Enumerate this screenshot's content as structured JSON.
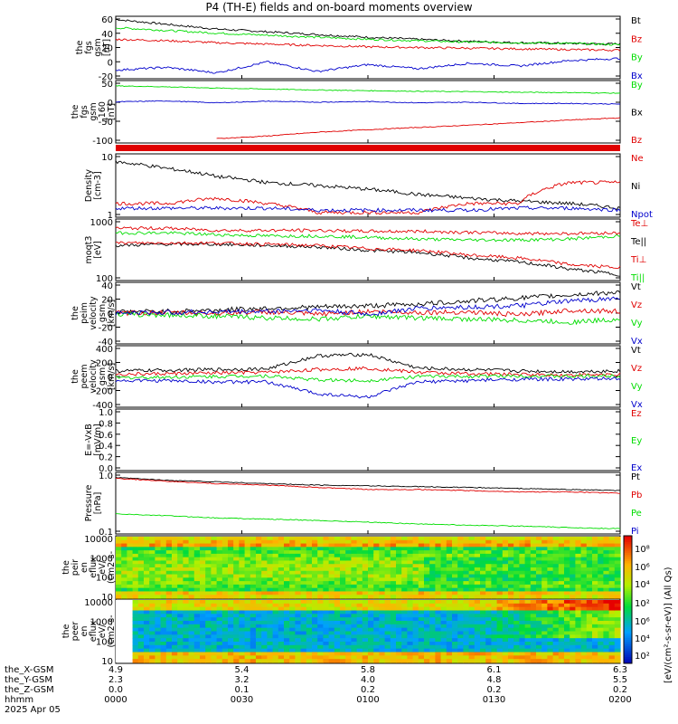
{
  "title": "P4 (TH-E) fields and on-board moments overview",
  "colors": {
    "black": "#000000",
    "red": "#e00000",
    "green": "#00dd00",
    "blue": "#0000cc",
    "axis": "#000000"
  },
  "panels": [
    {
      "id": "fgs_gsm",
      "ylabel": [
        "the",
        "fgs",
        "gsm",
        "[nT]"
      ],
      "ticks": [
        "60",
        "40",
        "20",
        "0",
        "-20"
      ],
      "legend": [
        {
          "t": "Bt",
          "c": "black"
        },
        {
          "t": "Bz",
          "c": "red"
        },
        {
          "t": "By",
          "c": "green"
        },
        {
          "t": "Bx",
          "c": "blue"
        }
      ]
    },
    {
      "id": "fgs_gsm_160",
      "ylabel": [
        "the",
        "fgs",
        "gsm",
        "_160",
        "[nT]"
      ],
      "ticks": [
        "50",
        "0",
        "-50",
        "-100"
      ],
      "legend": [
        {
          "t": "By",
          "c": "green"
        },
        {
          "t": "Bx",
          "c": "black"
        },
        {
          "t": "Bz",
          "c": "red"
        }
      ]
    },
    {
      "id": "density",
      "ylabel": [
        "Density",
        "[cm-3]"
      ],
      "ticks": [
        "10",
        "1"
      ],
      "legend": [
        {
          "t": "Ne",
          "c": "red"
        },
        {
          "t": "Ni",
          "c": "black"
        },
        {
          "t": "Npot",
          "c": "blue"
        }
      ]
    },
    {
      "id": "moqt3",
      "ylabel": [
        "moqt3",
        "[eV]"
      ],
      "ticks": [
        "1000",
        "100"
      ],
      "legend": [
        {
          "t": "Te⊥",
          "c": "red"
        },
        {
          "t": "Te||",
          "c": "black"
        },
        {
          "t": "Ti⊥",
          "c": "red"
        },
        {
          "t": "Ti||",
          "c": "green"
        }
      ]
    },
    {
      "id": "peim_vel",
      "ylabel": [
        "the",
        "peim",
        "velocity",
        "gsm",
        "[km/s]"
      ],
      "ticks": [
        "40",
        "20",
        "0",
        "-20",
        "-40"
      ],
      "legend": [
        {
          "t": "Vt",
          "c": "black"
        },
        {
          "t": "Vz",
          "c": "red"
        },
        {
          "t": "Vy",
          "c": "green"
        },
        {
          "t": "Vx",
          "c": "blue"
        }
      ]
    },
    {
      "id": "peem_vel",
      "ylabel": [
        "the",
        "peem",
        "velocity",
        "gsm",
        "[km/s]"
      ],
      "ticks": [
        "400",
        "200",
        "0",
        "-200",
        "-400"
      ],
      "legend": [
        {
          "t": "Vt",
          "c": "black"
        },
        {
          "t": "Vz",
          "c": "red"
        },
        {
          "t": "Vy",
          "c": "green"
        },
        {
          "t": "Vx",
          "c": "blue"
        }
      ]
    },
    {
      "id": "efield",
      "ylabel": [
        "E=-VxB",
        "[mV/m]"
      ],
      "ticks": [
        "1.0",
        "0.8",
        "0.6",
        "0.4",
        "0.2",
        "0.0"
      ],
      "legend": [
        {
          "t": "Ez",
          "c": "red"
        },
        {
          "t": "Ey",
          "c": "green"
        },
        {
          "t": "Ex",
          "c": "blue"
        }
      ]
    },
    {
      "id": "pressure",
      "ylabel": [
        "Pressure",
        "[nPa]"
      ],
      "ticks": [
        "1.0",
        "0.1"
      ],
      "legend": [
        {
          "t": "Pt",
          "c": "black"
        },
        {
          "t": "Pb",
          "c": "red"
        },
        {
          "t": "Pe",
          "c": "green"
        },
        {
          "t": "Pi",
          "c": "blue"
        }
      ]
    },
    {
      "id": "peir_eflux",
      "ylabel": [
        "the",
        "peir",
        "en",
        "eflux",
        "eV/",
        "(cm2-s-",
        "sr-eV)"
      ],
      "ticks": [
        "10000",
        "1000",
        "100",
        "10"
      ]
    },
    {
      "id": "peer_eflux",
      "ylabel": [
        "the",
        "peer",
        "en",
        "eflux",
        "eV/",
        "(cm2-s-",
        "sr-eV)"
      ],
      "ticks": [
        "10000",
        "1000",
        "100",
        "10"
      ]
    }
  ],
  "colorbar": {
    "ticks_top": [
      "10⁸",
      "10⁶",
      "10⁴",
      "10²"
    ],
    "ticks_bottom": [
      "10⁸",
      "10⁶",
      "10⁴",
      "10²"
    ],
    "label": "[eV/(cm²-s-sr-eV)] (All Qs)"
  },
  "ephemeris": {
    "row_labels": [
      "the_X-GSM",
      "the_Y-GSM",
      "the_Z-GSM",
      "hhmm",
      "2025 Apr 05"
    ],
    "columns": [
      {
        "x": "4.9",
        "y": "2.3",
        "z": "0.0",
        "t": "0000"
      },
      {
        "x": "5.4",
        "y": "3.2",
        "z": "0.1",
        "t": "0030"
      },
      {
        "x": "5.8",
        "y": "4.0",
        "z": "0.2",
        "t": "0100"
      },
      {
        "x": "6.1",
        "y": "4.8",
        "z": "0.2",
        "t": "0130"
      },
      {
        "x": "6.3",
        "y": "5.5",
        "z": "0.2",
        "t": "0200"
      }
    ]
  },
  "chart_data": {
    "type": "line",
    "title": "P4 (TH-E) fields and on-board moments overview",
    "x_range": [
      "0000",
      "0200"
    ],
    "series": [
      {
        "panel": "fgs_gsm",
        "name": "Bt",
        "values": [
          62,
          55,
          48,
          44,
          40,
          36,
          33,
          30,
          28,
          27,
          26
        ]
      },
      {
        "panel": "fgs_gsm",
        "name": "By",
        "values": [
          50,
          46,
          42,
          39,
          36,
          33,
          31,
          29,
          28,
          27,
          25
        ]
      },
      {
        "panel": "fgs_gsm",
        "name": "Bz",
        "values": [
          33,
          31,
          28,
          26,
          24,
          22,
          21,
          20,
          19,
          18,
          17
        ]
      },
      {
        "panel": "fgs_gsm",
        "name": "Bx",
        "values": [
          -12,
          -8,
          -16,
          0,
          -14,
          -4,
          -10,
          -2,
          -6,
          2,
          5
        ]
      },
      {
        "panel": "fgs_gsm_160",
        "name": "By",
        "values": [
          45,
          42,
          38,
          35,
          32,
          30,
          28,
          27,
          25,
          24,
          22
        ]
      },
      {
        "panel": "fgs_gsm_160",
        "name": "Bx",
        "values": [
          -5,
          -2,
          -8,
          -3,
          -6,
          -4,
          -8,
          -6,
          -10,
          -10,
          -12
        ]
      },
      {
        "panel": "fgs_gsm_160",
        "name": "Bz",
        "values": [
          null,
          null,
          -120,
          -112,
          -100,
          -92,
          -85,
          -78,
          -70,
          -62,
          -55
        ]
      },
      {
        "panel": "density",
        "name": "Ni",
        "values": [
          25,
          15,
          8,
          5,
          4,
          3,
          2,
          1.5,
          1.2,
          1,
          0.7
        ]
      },
      {
        "panel": "density",
        "name": "Ne",
        "values": [
          1,
          1,
          1.5,
          1,
          0.5,
          0.5,
          0.5,
          1,
          1,
          5,
          5
        ]
      },
      {
        "panel": "density",
        "name": "Npot",
        "values": [
          0.7,
          0.7,
          0.7,
          0.7,
          0.6,
          0.6,
          0.6,
          0.6,
          0.7,
          0.7,
          0.6
        ]
      },
      {
        "panel": "moqt3",
        "name": "Te||",
        "values": [
          1000,
          1100,
          1100,
          1000,
          900,
          700,
          600,
          400,
          300,
          180,
          120
        ]
      },
      {
        "panel": "moqt3",
        "name": "Te⊥",
        "values": [
          1200,
          1200,
          1200,
          1100,
          1000,
          800,
          700,
          500,
          400,
          250,
          200
        ]
      },
      {
        "panel": "moqt3",
        "name": "Ti||",
        "values": [
          2500,
          2500,
          2200,
          2000,
          2000,
          1800,
          1600,
          1500,
          1500,
          1600,
          2000
        ]
      },
      {
        "panel": "moqt3",
        "name": "Ti⊥",
        "values": [
          3500,
          3500,
          3000,
          3000,
          3000,
          2800,
          2800,
          2600,
          2400,
          2400,
          2500
        ]
      },
      {
        "panel": "peim_vel",
        "name": "Vt",
        "values": [
          2,
          3,
          5,
          8,
          10,
          12,
          15,
          20,
          25,
          30,
          35
        ]
      },
      {
        "panel": "peim_vel",
        "name": "Vz",
        "values": [
          0,
          1,
          0,
          2,
          -2,
          3,
          1,
          2,
          -3,
          5,
          3
        ]
      },
      {
        "panel": "peim_vel",
        "name": "Vy",
        "values": [
          -2,
          -3,
          -5,
          -8,
          -10,
          -5,
          -8,
          -10,
          -12,
          -15,
          -10
        ]
      },
      {
        "panel": "peim_vel",
        "name": "Vx",
        "values": [
          0,
          1,
          2,
          3,
          5,
          -2,
          8,
          10,
          12,
          20,
          25
        ]
      },
      {
        "panel": "peem_vel",
        "name": "Vt",
        "values": [
          80,
          90,
          100,
          110,
          300,
          320,
          120,
          100,
          80,
          70,
          80
        ]
      },
      {
        "panel": "peem_vel",
        "name": "Vz",
        "values": [
          30,
          40,
          50,
          60,
          100,
          120,
          60,
          40,
          30,
          20,
          30
        ]
      },
      {
        "panel": "peem_vel",
        "name": "Vy",
        "values": [
          -20,
          -10,
          0,
          10,
          -50,
          -60,
          0,
          0,
          10,
          0,
          10
        ]
      },
      {
        "panel": "peem_vel",
        "name": "Vx",
        "values": [
          -60,
          -60,
          -80,
          -80,
          -250,
          -300,
          -80,
          -60,
          -40,
          -40,
          -30
        ]
      },
      {
        "panel": "pressure",
        "name": "Pt",
        "values": [
          1.5,
          1.2,
          1.05,
          0.9,
          0.8,
          0.75,
          0.7,
          0.65,
          0.6,
          0.55,
          0.5
        ]
      },
      {
        "panel": "pressure",
        "name": "Pb",
        "values": [
          1.4,
          1.1,
          0.9,
          0.8,
          0.65,
          0.55,
          0.55,
          0.5,
          0.45,
          0.45,
          0.4
        ]
      },
      {
        "panel": "pressure",
        "name": "Pe",
        "values": [
          0.07,
          0.06,
          0.05,
          0.045,
          0.04,
          0.035,
          0.03,
          0.027,
          0.025,
          0.022,
          0.02
        ]
      }
    ]
  }
}
